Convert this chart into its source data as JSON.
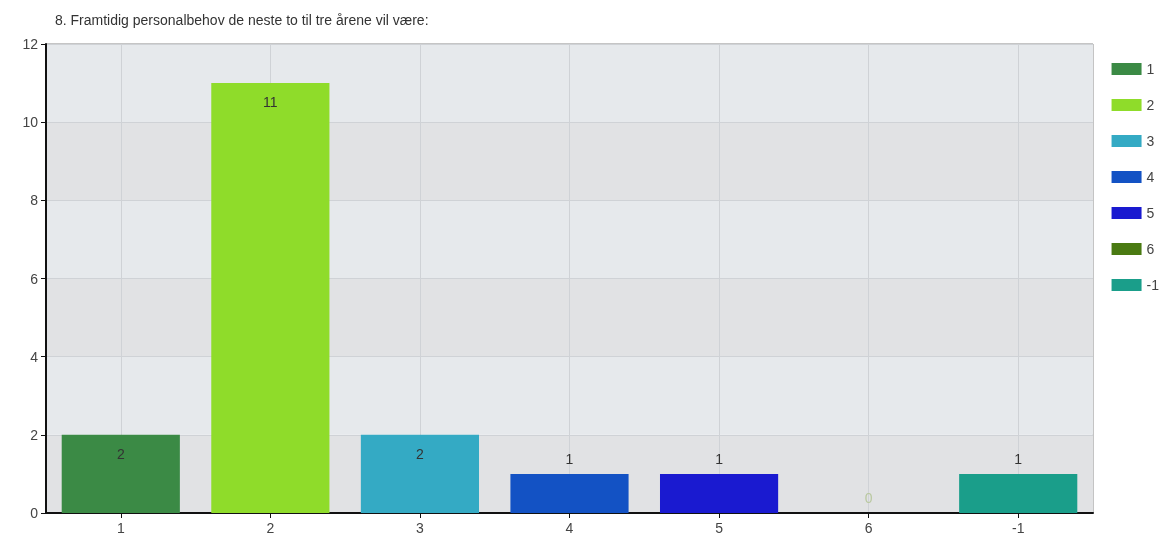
{
  "chart_data": {
    "type": "bar",
    "title": "8. Framtidig personalbehov de neste to til tre årene vil være:",
    "categories": [
      "1",
      "2",
      "3",
      "4",
      "5",
      "6",
      "-1"
    ],
    "series": [
      {
        "name": "1",
        "color": "#3b8a45",
        "values": [
          2,
          null,
          null,
          null,
          null,
          null,
          null
        ]
      },
      {
        "name": "2",
        "color": "#8fdc2a",
        "values": [
          null,
          11,
          null,
          null,
          null,
          null,
          null
        ]
      },
      {
        "name": "3",
        "color": "#34aac4",
        "values": [
          null,
          null,
          2,
          null,
          null,
          null,
          null
        ]
      },
      {
        "name": "4",
        "color": "#1352c4",
        "values": [
          null,
          null,
          null,
          1,
          null,
          null,
          null
        ]
      },
      {
        "name": "5",
        "color": "#1a1ad0",
        "values": [
          null,
          null,
          null,
          null,
          1,
          null,
          null
        ]
      },
      {
        "name": "6",
        "color": "#4a7a12",
        "values": [
          null,
          null,
          null,
          null,
          null,
          0,
          null
        ]
      },
      {
        "name": "-1",
        "color": "#1a9e8a",
        "values": [
          null,
          null,
          null,
          null,
          null,
          null,
          1
        ]
      }
    ],
    "ylim": [
      0,
      12
    ],
    "yticks": [
      0,
      2,
      4,
      6,
      8,
      10,
      12
    ],
    "grid": true,
    "legend": "top right",
    "data_labels": true
  }
}
